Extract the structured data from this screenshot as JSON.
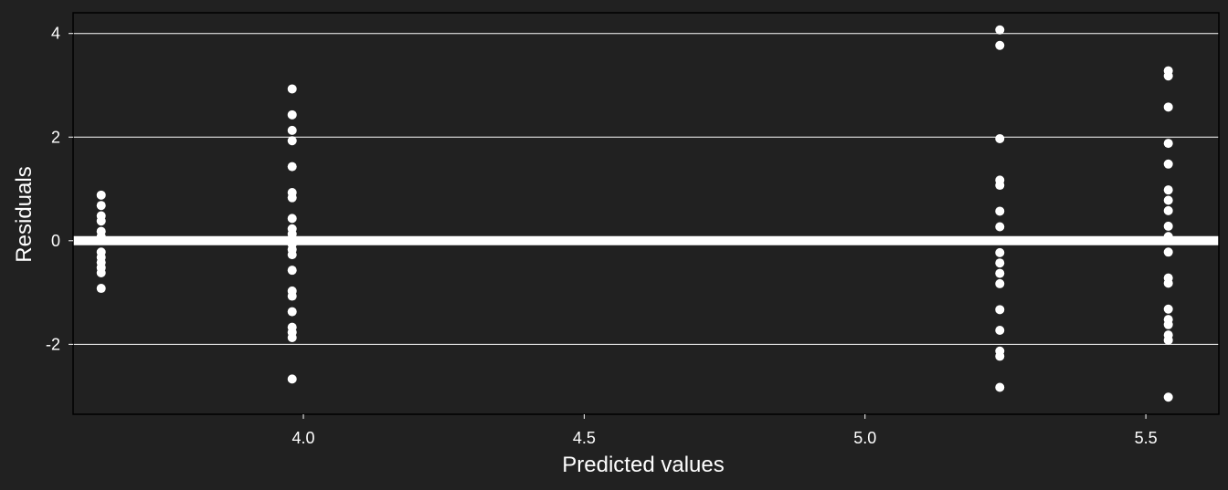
{
  "chart_data": {
    "type": "scatter",
    "title": "",
    "xlabel": "Predicted values",
    "ylabel": "Residuals",
    "xlim": [
      3.59,
      5.63
    ],
    "ylim": [
      -3.35,
      4.4
    ],
    "x_ticks": [
      4.0,
      4.5,
      5.0,
      5.5
    ],
    "x_tick_labels": [
      "4.0",
      "4.5",
      "5.0",
      "5.5"
    ],
    "y_ticks": [
      -2,
      0,
      2,
      4
    ],
    "y_tick_labels": [
      "-2",
      "0",
      "2",
      "4"
    ],
    "grid": "horizontal major lines",
    "reference_line": 0,
    "colors": {
      "background": "#212121",
      "points": "#ffffff",
      "grid": "#ffffff",
      "text": "#ffffff"
    },
    "series": [
      {
        "points": [
          [
            3.64,
            0.88
          ],
          [
            3.64,
            0.68
          ],
          [
            3.64,
            0.48
          ],
          [
            3.64,
            0.38
          ],
          [
            3.64,
            0.18
          ],
          [
            3.64,
            0.08
          ],
          [
            3.64,
            -0.22
          ],
          [
            3.64,
            -0.32
          ],
          [
            3.64,
            -0.42
          ],
          [
            3.64,
            -0.52
          ],
          [
            3.64,
            -0.62
          ],
          [
            3.64,
            -0.92
          ],
          [
            3.98,
            2.93
          ],
          [
            3.98,
            2.43
          ],
          [
            3.98,
            2.13
          ],
          [
            3.98,
            1.93
          ],
          [
            3.98,
            1.43
          ],
          [
            3.98,
            0.93
          ],
          [
            3.98,
            0.83
          ],
          [
            3.98,
            0.43
          ],
          [
            3.98,
            0.23
          ],
          [
            3.98,
            0.13
          ],
          [
            3.98,
            -0.07
          ],
          [
            3.98,
            -0.17
          ],
          [
            3.98,
            -0.27
          ],
          [
            3.98,
            -0.57
          ],
          [
            3.98,
            -0.97
          ],
          [
            3.98,
            -1.07
          ],
          [
            3.98,
            -1.37
          ],
          [
            3.98,
            -1.67
          ],
          [
            3.98,
            -1.77
          ],
          [
            3.98,
            -1.87
          ],
          [
            3.98,
            -2.67
          ],
          [
            5.24,
            4.07
          ],
          [
            5.24,
            3.77
          ],
          [
            5.24,
            1.97
          ],
          [
            5.24,
            1.17
          ],
          [
            5.24,
            1.07
          ],
          [
            5.24,
            0.57
          ],
          [
            5.24,
            0.27
          ],
          [
            5.24,
            -0.23
          ],
          [
            5.24,
            -0.43
          ],
          [
            5.24,
            -0.63
          ],
          [
            5.24,
            -0.83
          ],
          [
            5.24,
            -1.33
          ],
          [
            5.24,
            -1.73
          ],
          [
            5.24,
            -2.13
          ],
          [
            5.24,
            -2.23
          ],
          [
            5.24,
            -2.83
          ],
          [
            5.54,
            3.28
          ],
          [
            5.54,
            3.18
          ],
          [
            5.54,
            2.58
          ],
          [
            5.54,
            1.88
          ],
          [
            5.54,
            1.48
          ],
          [
            5.54,
            0.98
          ],
          [
            5.54,
            0.78
          ],
          [
            5.54,
            0.58
          ],
          [
            5.54,
            0.28
          ],
          [
            5.54,
            0.08
          ],
          [
            5.54,
            -0.22
          ],
          [
            5.54,
            -0.72
          ],
          [
            5.54,
            -0.82
          ],
          [
            5.54,
            -1.32
          ],
          [
            5.54,
            -1.52
          ],
          [
            5.54,
            -1.62
          ],
          [
            5.54,
            -1.82
          ],
          [
            5.54,
            -1.92
          ],
          [
            5.54,
            -3.02
          ]
        ]
      }
    ]
  }
}
